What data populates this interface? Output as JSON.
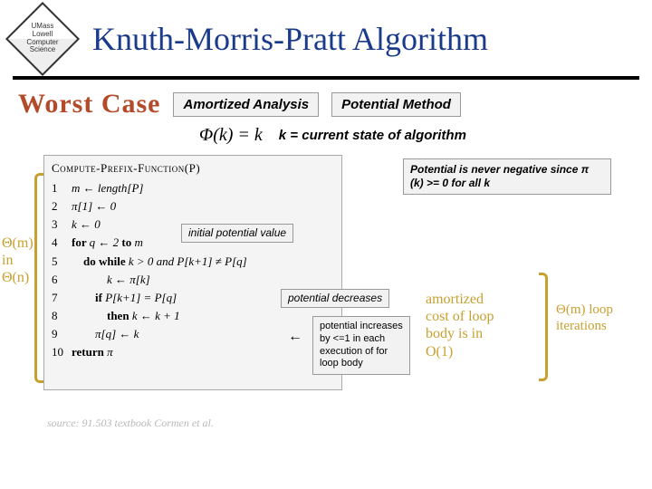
{
  "title": "Knuth-Morris-Pratt Algorithm",
  "logo": {
    "top": "UMass",
    "right": "Lowell",
    "bottom": "Science",
    "left": "Computer"
  },
  "worst_case": "Worst Case",
  "box_amortized": "Amortized Analysis",
  "box_potential": "Potential Method",
  "phi_eq": "Φ(k) = k",
  "k_state": "k = current state of algorithm",
  "left_complexity_l1": "Θ(m)",
  "left_complexity_l2": "in",
  "left_complexity_l3": "Θ(n)",
  "algo": {
    "title": "Compute-Prefix-Function(P)",
    "lines": [
      "m ← length[P]",
      "π[1] ← 0",
      "k ← 0",
      "for q ← 2 to m",
      "    do while k > 0 and P[k+1] ≠ P[q]",
      "            k ← π[k]",
      "        if P[k+1] = P[q]",
      "            then k ← k + 1",
      "        π[q] ← k",
      "return π"
    ]
  },
  "note_potential_never": "Potential is never negative since π (k) >= 0 for all k",
  "note_initial": "initial potential value",
  "note_decreases": "potential decreases",
  "note_increases": "potential increases by <=1 in each execution of for loop body",
  "amortized_l1": "amortized",
  "amortized_l2": "cost of loop",
  "amortized_l3": "body is in",
  "amortized_l4": "O(1)",
  "loop_iter_l1": "Θ(m) loop",
  "loop_iter_l2": "iterations",
  "source": "source: 91.503 textbook Cormen et al.",
  "colors": {
    "title": "#1a3a8a",
    "accent": "#c8a030",
    "worst": "#b34a2a",
    "box_bg": "#f2f2f2"
  }
}
